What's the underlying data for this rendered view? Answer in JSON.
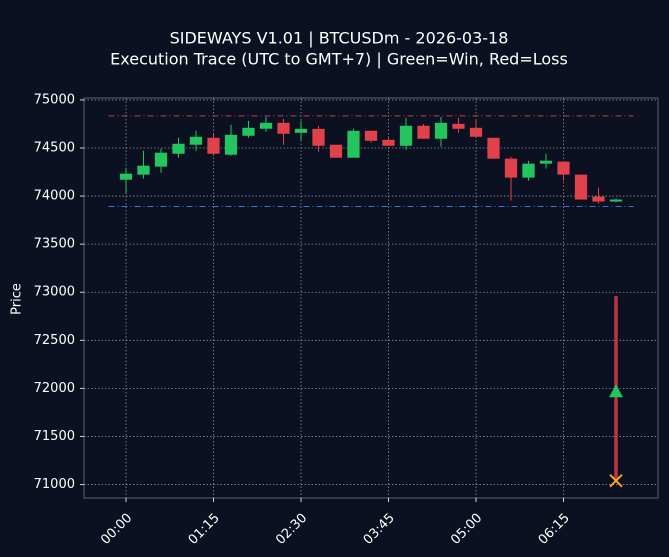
{
  "chart_data": {
    "type": "candlestick",
    "title": "SIDEWAYS V1.01 | BTCUSDm - 2026-03-18",
    "subtitle": "Execution Trace (UTC to GMT+7) | Green=Win, Red=Loss",
    "y_label": "Price",
    "categories": [
      "00:00",
      null,
      null,
      null,
      null,
      "01:15",
      null,
      null,
      null,
      null,
      "02:30",
      null,
      null,
      null,
      null,
      "03:45",
      null,
      null,
      null,
      null,
      "05:00",
      null,
      null,
      null,
      null,
      "06:15",
      null,
      null,
      null
    ],
    "open": [
      74170,
      74223,
      74306,
      74440,
      74534,
      74606,
      74430,
      74627,
      74700,
      74762,
      74658,
      74699,
      74534,
      74399,
      74679,
      74585,
      74523,
      74731,
      74596,
      74751,
      74710,
      74606,
      74389,
      74192,
      74337,
      74358,
      74223,
      73995,
      73943
    ],
    "high": [
      74295,
      74471,
      74492,
      74606,
      74679,
      74658,
      74741,
      74782,
      74824,
      74803,
      74782,
      74731,
      74534,
      74700,
      74679,
      74606,
      74813,
      74751,
      74824,
      74813,
      74803,
      74606,
      74409,
      74368,
      74440,
      74358,
      74223,
      74088,
      73974
    ],
    "low": [
      74026,
      74181,
      74243,
      74399,
      74471,
      74420,
      74420,
      74606,
      74668,
      74534,
      74575,
      74461,
      74399,
      74399,
      74554,
      74523,
      74482,
      74596,
      74513,
      74658,
      74617,
      74389,
      73953,
      74161,
      74285,
      74161,
      73964,
      73922,
      73933
    ],
    "close": [
      74233,
      74316,
      74451,
      74544,
      74617,
      74440,
      74637,
      74710,
      74762,
      74648,
      74699,
      74523,
      74399,
      74679,
      74575,
      74523,
      74731,
      74596,
      74762,
      74700,
      74617,
      74389,
      74192,
      74337,
      74368,
      74223,
      73964,
      73943,
      73964
    ],
    "up_color": "#22c55e",
    "down_color": "#e0414b",
    "hlines": [
      {
        "value": 74834,
        "color": "#b5404a"
      },
      {
        "value": 73891,
        "color": "#3b6fd4"
      }
    ],
    "trade": {
      "index": 28,
      "line_top": 72960,
      "line_bottom": 71040,
      "entry": 71970,
      "exit": 71040,
      "line_color": "#c0343f",
      "entry_color": "#22c55e",
      "exit_color": "#f5a524"
    },
    "ylim": [
      70860,
      75020
    ],
    "yticks": [
      71000,
      71500,
      72000,
      72500,
      73000,
      73500,
      74000,
      74500,
      75000
    ],
    "grid": true
  }
}
